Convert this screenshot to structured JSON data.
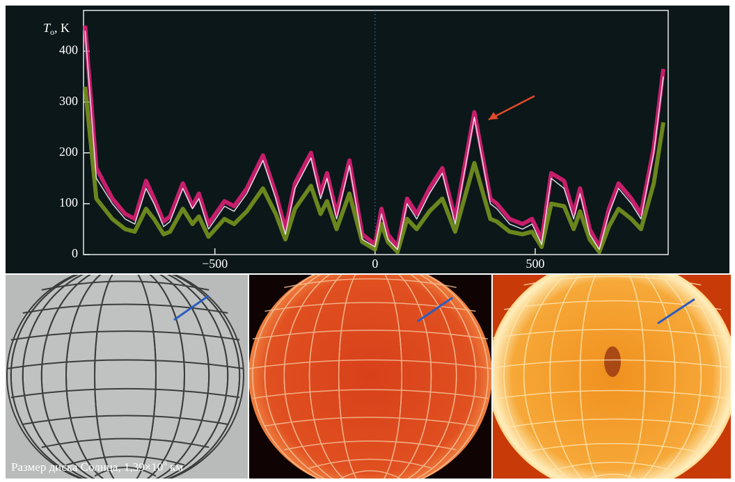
{
  "chart_data": {
    "type": "line",
    "y_label": {
      "symbol": "T",
      "subscript": "o",
      "unit": ", K"
    },
    "caption": {
      "text": "Размер диска Солнца, 1,39×10",
      "superscript": "6",
      "unit": " км"
    },
    "x": [
      -905,
      -870,
      -820,
      -780,
      -750,
      -715,
      -690,
      -660,
      -640,
      -600,
      -570,
      -550,
      -520,
      -470,
      -440,
      -400,
      -350,
      -310,
      -280,
      -250,
      -200,
      -170,
      -150,
      -120,
      -80,
      -40,
      0,
      20,
      40,
      70,
      100,
      130,
      170,
      210,
      250,
      310,
      360,
      380,
      420,
      460,
      490,
      520,
      550,
      590,
      620,
      640,
      670,
      700,
      730,
      760,
      800,
      830,
      870,
      900
    ],
    "series": [
      {
        "color": "#e8207a",
        "values": [
          450,
          170,
          110,
          80,
          70,
          145,
          110,
          65,
          75,
          140,
          95,
          120,
          60,
          105,
          95,
          130,
          195,
          120,
          50,
          140,
          200,
          120,
          160,
          80,
          185,
          40,
          20,
          90,
          40,
          15,
          110,
          80,
          130,
          170,
          70,
          280,
          110,
          100,
          70,
          60,
          70,
          30,
          160,
          145,
          80,
          130,
          50,
          15,
          90,
          140,
          110,
          80,
          210,
          365
        ]
      },
      {
        "color": "#7d9a1e",
        "values": [
          330,
          110,
          70,
          50,
          45,
          90,
          70,
          40,
          45,
          90,
          60,
          75,
          35,
          70,
          60,
          85,
          130,
          80,
          30,
          90,
          135,
          80,
          105,
          50,
          120,
          25,
          10,
          60,
          25,
          5,
          70,
          50,
          85,
          110,
          45,
          180,
          70,
          65,
          45,
          40,
          45,
          15,
          100,
          95,
          50,
          85,
          30,
          5,
          55,
          90,
          70,
          50,
          140,
          260
        ]
      },
      {
        "color": "#f2eef8",
        "values": [
          440,
          150,
          100,
          70,
          60,
          130,
          100,
          55,
          65,
          130,
          90,
          110,
          50,
          95,
          85,
          120,
          185,
          110,
          40,
          130,
          190,
          110,
          150,
          70,
          175,
          30,
          15,
          80,
          30,
          10,
          100,
          70,
          120,
          160,
          60,
          270,
          100,
          90,
          60,
          50,
          60,
          20,
          150,
          130,
          70,
          120,
          40,
          10,
          80,
          130,
          100,
          70,
          200,
          350
        ]
      }
    ],
    "xlim": [
      -910,
      915
    ],
    "ylim": [
      0,
      480
    ],
    "xticks": [
      {
        "value": -500,
        "label": "−500"
      },
      0,
      500
    ],
    "yticks": [
      0,
      100,
      200,
      300,
      400
    ]
  }
}
